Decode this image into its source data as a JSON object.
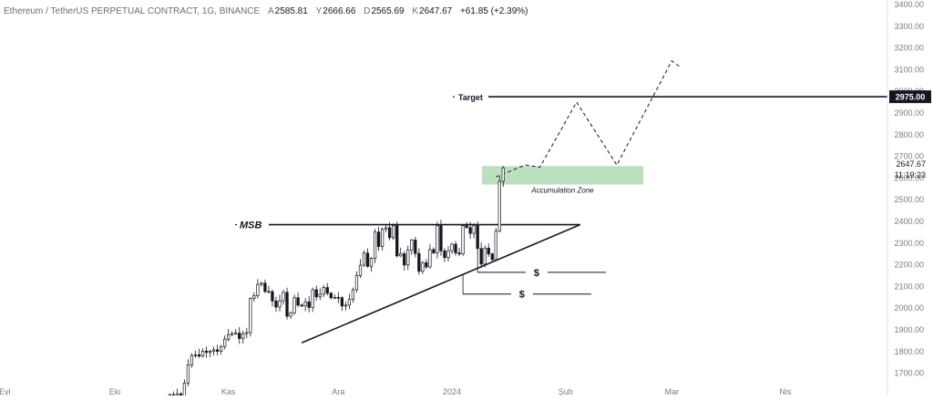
{
  "legend": {
    "symbol": "Ethereum / TetherUS PERPETUAL CONTRACT, 1G, BINANCE",
    "o_label": "A",
    "o_value": "2585.81",
    "h_label": "Y",
    "h_value": "2666.66",
    "l_label": "D",
    "l_value": "2565.69",
    "c_label": "K",
    "c_value": "2647.67",
    "change": "+61.85 (+2.39%)"
  },
  "chart_data": {
    "type": "candlestick",
    "title": "",
    "x_tick_labels": [
      "Eyl",
      "Eki",
      "Kas",
      "Ara",
      "2024",
      "Şub",
      "Mar",
      "Nis"
    ],
    "y_tick_labels": [
      "1700.00",
      "1800.00",
      "1900.00",
      "2000.00",
      "2100.00",
      "2200.00",
      "2300.00",
      "2400.00",
      "2500.00",
      "2600.00",
      "2700.00",
      "2800.00",
      "2900.00",
      "3000.00",
      "3100.00",
      "3200.00",
      "3300.00",
      "3400.00"
    ],
    "ylim": [
      1640,
      3400
    ],
    "candles_start": "2023-10-16",
    "candles_end": "2024-01-12",
    "closes": [
      1601,
      1598,
      1605,
      1585,
      1655,
      1738,
      1782,
      1785,
      1779,
      1802,
      1796,
      1802,
      1808,
      1801,
      1823,
      1857,
      1878,
      1883,
      1885,
      1860,
      1883,
      1887,
      2045,
      2058,
      2110,
      2115,
      2077,
      2076,
      2033,
      2005,
      2034,
      2073,
      1963,
      1979,
      2048,
      2014,
      2011,
      2029,
      2003,
      2085,
      2052,
      2064,
      2095,
      2069,
      2048,
      2050,
      2048,
      2010,
      2014,
      2040,
      2085,
      2150,
      2198,
      2254,
      2193,
      2230,
      2351,
      2284,
      2364,
      2371,
      2325,
      2380,
      2241,
      2251,
      2199,
      2267,
      2314,
      2252,
      2170,
      2210,
      2190,
      2270,
      2255,
      2380,
      2264,
      2233,
      2265,
      2295,
      2255,
      2250,
      2380,
      2372,
      2345,
      2381,
      2275,
      2203,
      2277,
      2250,
      2224,
      2355,
      2585,
      2647
    ],
    "last_price": "2647.67",
    "countdown": "11:19:23",
    "price_line": {
      "label": "2975.00",
      "value": 2975,
      "color": "#131722"
    },
    "annotations": {
      "target": "Target",
      "msb": "MSB",
      "accumulation_zone": "Accumulation Zone",
      "dollar_1": "$",
      "dollar_2": "$"
    },
    "msb_level": 2385,
    "target_level": 2975,
    "zone": {
      "low": 2570,
      "high": 2655,
      "color": "#a5d6a7"
    },
    "trendline": {
      "from_date": "2023-11-21",
      "from_value": 1840,
      "to_date": "2024-02-05",
      "to_value": 2385
    },
    "projection": [
      [
        "2024-01-13",
        2605
      ],
      [
        "2024-01-21",
        2660
      ],
      [
        "2024-01-25",
        2650
      ],
      [
        "2024-02-04",
        2950
      ],
      [
        "2024-02-15",
        2660
      ],
      [
        "2024-03-01",
        3140
      ],
      [
        "2024-03-03",
        3115
      ]
    ],
    "liquidity": [
      {
        "level": 2165,
        "from_date": "2024-01-08",
        "to_date": "2024-02-12"
      },
      {
        "level": 2065,
        "from_date": "2024-01-04",
        "to_date": "2024-02-08"
      }
    ],
    "colors": {
      "up": "#ffffff",
      "down": "#131722",
      "wick": "#131722",
      "axis_text": "#787b86",
      "grid": "#f0f3fa"
    },
    "grid": false
  }
}
